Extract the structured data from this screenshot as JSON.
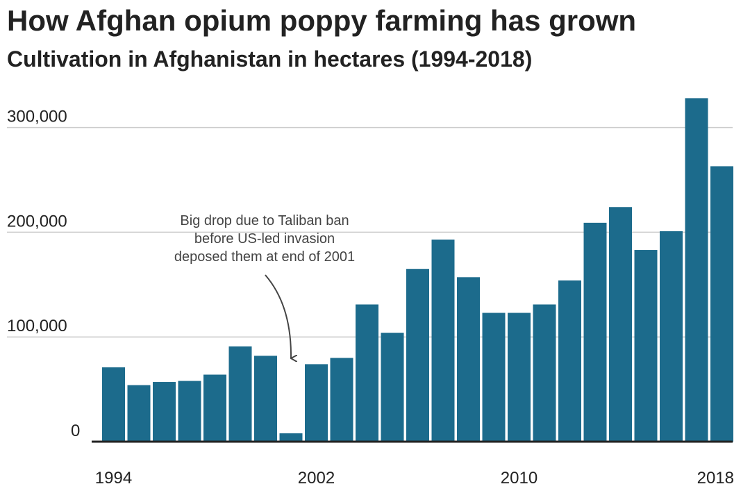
{
  "header": {
    "title": "How Afghan opium poppy farming has grown",
    "subtitle": "Cultivation in Afghanistan in hectares (1994-2018)"
  },
  "colors": {
    "bar": "#1c6b8c",
    "grid": "#cccccc",
    "axis": "#222222",
    "annotation_arrow": "#444444"
  },
  "chart_data": {
    "type": "bar",
    "title": "How Afghan opium poppy farming has grown",
    "subtitle": "Cultivation in Afghanistan in hectares (1994-2018)",
    "xlabel": "",
    "ylabel": "",
    "categories": [
      "1994",
      "1995",
      "1996",
      "1997",
      "1998",
      "1999",
      "2000",
      "2001",
      "2002",
      "2003",
      "2004",
      "2005",
      "2006",
      "2007",
      "2008",
      "2009",
      "2010",
      "2011",
      "2012",
      "2013",
      "2014",
      "2015",
      "2016",
      "2017",
      "2018"
    ],
    "values": [
      71000,
      54000,
      57000,
      58000,
      64000,
      91000,
      82000,
      8000,
      74000,
      80000,
      131000,
      104000,
      165000,
      193000,
      157000,
      123000,
      123000,
      131000,
      154000,
      209000,
      224000,
      183000,
      201000,
      328000,
      263000
    ],
    "ylim": [
      0,
      330000
    ],
    "y_ticks": [
      0,
      100000,
      200000,
      300000
    ],
    "y_tick_labels": [
      "0",
      "100,000",
      "200,000",
      "300,000"
    ],
    "x_tick_labels": [
      "1994",
      "2002",
      "2010",
      "2018"
    ],
    "grid": true,
    "legend": "none",
    "annotations": [
      {
        "category": "2001",
        "lines": [
          "Big drop due to Taliban ban",
          "before US-led invasion",
          "deposed them at end of 2001"
        ]
      }
    ]
  }
}
